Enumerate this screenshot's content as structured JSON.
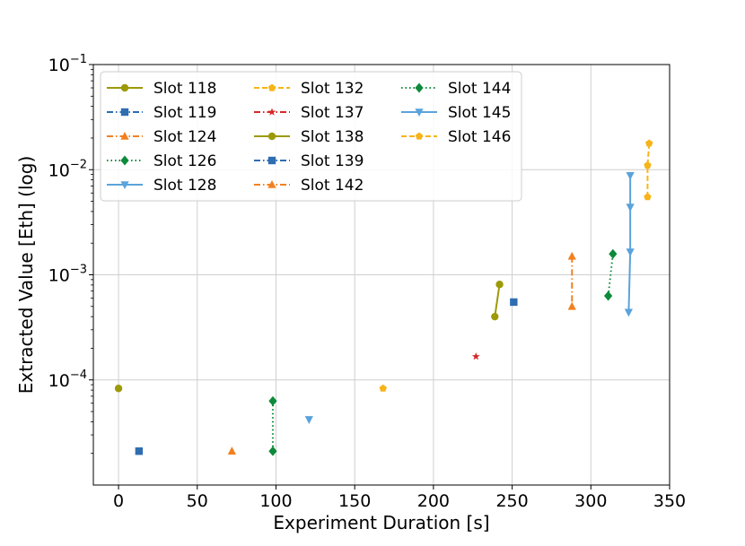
{
  "chart_data": {
    "type": "scatter",
    "xlabel": "Experiment Duration [s]",
    "ylabel": "Extracted Value [Eth] (log)",
    "yscale": "log",
    "xlim": [
      -16,
      350
    ],
    "ylim": [
      1e-05,
      0.1
    ],
    "grid": true,
    "legend_position": "top-left",
    "legend_columns": 3,
    "x_ticks": [
      {
        "value": 0,
        "label": "0"
      },
      {
        "value": 50,
        "label": "50"
      },
      {
        "value": 100,
        "label": "100"
      },
      {
        "value": 150,
        "label": "150"
      },
      {
        "value": 200,
        "label": "200"
      },
      {
        "value": 250,
        "label": "250"
      },
      {
        "value": 300,
        "label": "300"
      },
      {
        "value": 350,
        "label": "350"
      }
    ],
    "y_ticks": [
      {
        "value": 0.0001,
        "base": "10",
        "exp": "−4"
      },
      {
        "value": 0.001,
        "base": "10",
        "exp": "−3"
      },
      {
        "value": 0.01,
        "base": "10",
        "exp": "−2"
      },
      {
        "value": 0.1,
        "base": "10",
        "exp": "−1"
      }
    ],
    "series": [
      {
        "name": "Slot 118",
        "color": "#9c9a08",
        "marker": "circle",
        "linestyle": "solid",
        "x": [
          0
        ],
        "y": [
          8.3e-05
        ]
      },
      {
        "name": "Slot 119",
        "color": "#2f6db1",
        "marker": "square",
        "linestyle": "dashdot",
        "x": [
          13
        ],
        "y": [
          2.1e-05
        ]
      },
      {
        "name": "Slot 124",
        "color": "#f28020",
        "marker": "triangle-up",
        "linestyle": "dashdot",
        "x": [
          72
        ],
        "y": [
          2.1e-05
        ]
      },
      {
        "name": "Slot 126",
        "color": "#0d8a3a",
        "marker": "diamond",
        "linestyle": "dotted",
        "x": [
          98,
          98
        ],
        "y": [
          6.3e-05,
          2.1e-05
        ]
      },
      {
        "name": "Slot 128",
        "color": "#5aa3db",
        "marker": "triangle-down",
        "linestyle": "solid",
        "x": [
          121
        ],
        "y": [
          4.2e-05
        ]
      },
      {
        "name": "Slot 132",
        "color": "#f7b418",
        "marker": "pentagon",
        "linestyle": "dashed",
        "x": [
          168
        ],
        "y": [
          8.3e-05
        ]
      },
      {
        "name": "Slot 137",
        "color": "#d62728",
        "marker": "star",
        "linestyle": "dashdot",
        "x": [
          227
        ],
        "y": [
          0.000167
        ]
      },
      {
        "name": "Slot 138",
        "color": "#9c9a08",
        "marker": "circle",
        "linestyle": "solid",
        "x": [
          239,
          242
        ],
        "y": [
          0.0004,
          0.00081
        ]
      },
      {
        "name": "Slot 139",
        "color": "#2f6db1",
        "marker": "square",
        "linestyle": "dashdot",
        "x": [
          251
        ],
        "y": [
          0.00055
        ]
      },
      {
        "name": "Slot 142",
        "color": "#f28020",
        "marker": "triangle-up",
        "linestyle": "dashdot",
        "x": [
          288,
          288
        ],
        "y": [
          0.0015,
          0.0005
        ]
      },
      {
        "name": "Slot 144",
        "color": "#0d8a3a",
        "marker": "diamond",
        "linestyle": "dotted",
        "x": [
          311,
          314
        ],
        "y": [
          0.00063,
          0.00158
        ]
      },
      {
        "name": "Slot 145",
        "color": "#5aa3db",
        "marker": "triangle-down",
        "linestyle": "solid",
        "x": [
          325,
          325,
          325,
          324
        ],
        "y": [
          0.0088,
          0.0044,
          0.00165,
          0.00044
        ]
      },
      {
        "name": "Slot 146",
        "color": "#f7b418",
        "marker": "pentagon",
        "linestyle": "dashed",
        "x": [
          337,
          336,
          336
        ],
        "y": [
          0.0178,
          0.011,
          0.0055
        ]
      }
    ]
  }
}
